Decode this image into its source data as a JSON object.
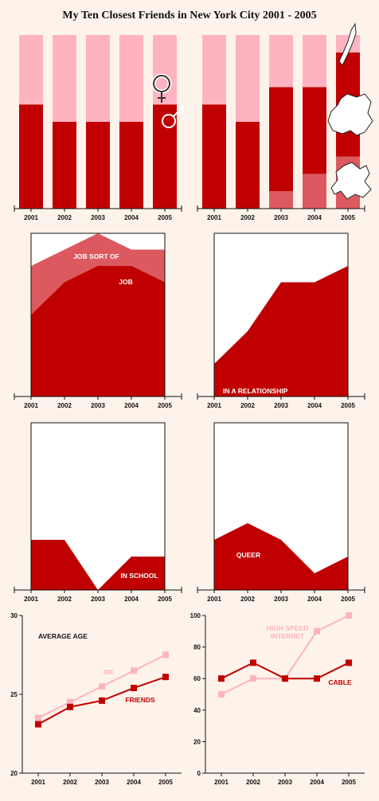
{
  "title": "My Ten Closest Friends in New York City 2001 - 2005",
  "colors": {
    "dark": "#c00000",
    "mid": "#dc5a5f",
    "light": "#ffb3c1",
    "background": "#fdf3ea"
  },
  "chart_data": [
    {
      "id": "gender",
      "type": "bar",
      "stacked": true,
      "categories": [
        "2001",
        "2002",
        "2003",
        "2004",
        "2005"
      ],
      "ylim": [
        0,
        10
      ],
      "series": [
        {
          "name": "male",
          "icon": "male-symbol-icon",
          "color": "dark",
          "values": [
            6,
            5,
            5,
            5,
            6
          ]
        },
        {
          "name": "female",
          "icon": "female-symbol-icon",
          "color": "light",
          "values": [
            4,
            5,
            5,
            5,
            4
          ]
        }
      ]
    },
    {
      "id": "borough",
      "type": "bar",
      "stacked": true,
      "categories": [
        "2001",
        "2002",
        "2003",
        "2004",
        "2005"
      ],
      "ylim": [
        0,
        10
      ],
      "series": [
        {
          "name": "Queens",
          "icon": "queens-map-icon",
          "color": "mid",
          "values": [
            0,
            0,
            1,
            2,
            3
          ]
        },
        {
          "name": "Brooklyn",
          "icon": "brooklyn-map-icon",
          "color": "dark",
          "values": [
            6,
            5,
            6,
            5,
            6
          ]
        },
        {
          "name": "Manhattan",
          "icon": "manhattan-map-icon",
          "color": "light",
          "values": [
            4,
            5,
            3,
            3,
            1
          ]
        }
      ]
    },
    {
      "id": "job",
      "type": "area",
      "x": [
        "2001",
        "2002",
        "2003",
        "2004",
        "2005"
      ],
      "ylim": [
        0,
        10
      ],
      "series": [
        {
          "name": "JOB",
          "color": "dark",
          "values": [
            5,
            7,
            8,
            8,
            7
          ]
        },
        {
          "name": "JOB SORT OF",
          "color": "mid",
          "values": [
            8,
            9,
            10,
            9,
            9
          ]
        }
      ],
      "labels": {
        "job": "JOB",
        "job_sort_of": "JOB SORT OF"
      }
    },
    {
      "id": "relationship",
      "type": "area",
      "x": [
        "2001",
        "2002",
        "2003",
        "2004",
        "2005"
      ],
      "ylim": [
        0,
        10
      ],
      "series": [
        {
          "name": "IN A RELATIONSHIP",
          "color": "dark",
          "values": [
            2,
            4,
            7,
            7,
            8
          ]
        }
      ],
      "labels": {
        "main": "IN A RELATIONSHIP"
      }
    },
    {
      "id": "school",
      "type": "area",
      "x": [
        "2001",
        "2002",
        "2003",
        "2004",
        "2005"
      ],
      "ylim": [
        0,
        10
      ],
      "series": [
        {
          "name": "IN SCHOOL",
          "color": "dark",
          "values": [
            3,
            3,
            0,
            2,
            2
          ]
        }
      ],
      "labels": {
        "main": "IN SCHOOL"
      }
    },
    {
      "id": "queer",
      "type": "area",
      "x": [
        "2001",
        "2002",
        "2003",
        "2004",
        "2005"
      ],
      "ylim": [
        0,
        10
      ],
      "series": [
        {
          "name": "QUEER",
          "color": "dark",
          "values": [
            3,
            4,
            3,
            1,
            2
          ]
        }
      ],
      "labels": {
        "main": "QUEER"
      }
    },
    {
      "id": "age",
      "type": "line",
      "x": [
        "2001",
        "2002",
        "2003",
        "2004",
        "2005"
      ],
      "ylim": [
        20,
        30
      ],
      "yticks": [
        "20",
        "25",
        "30"
      ],
      "series": [
        {
          "name": "ME",
          "color": "light",
          "values": [
            23.5,
            24.5,
            25.5,
            26.5,
            27.5
          ]
        },
        {
          "name": "FRIENDS",
          "color": "dark",
          "values": [
            23.1,
            24.2,
            24.6,
            25.4,
            26.1
          ]
        }
      ],
      "labels": {
        "title": "AVERAGE AGE",
        "me": "ME",
        "friends": "FRIENDS"
      }
    },
    {
      "id": "internet",
      "type": "line",
      "x": [
        "2001",
        "2002",
        "2003",
        "2004",
        "2005"
      ],
      "ylim": [
        0,
        100
      ],
      "yticks": [
        "0",
        "20",
        "40",
        "60",
        "80",
        "100"
      ],
      "series": [
        {
          "name": "HIGH SPEED INTERNET",
          "color": "light",
          "values": [
            50,
            60,
            60,
            90,
            100
          ]
        },
        {
          "name": "CABLE",
          "color": "dark",
          "values": [
            60,
            70,
            60,
            60,
            70
          ]
        }
      ],
      "labels": {
        "hsi_line1": "HIGH SPEED",
        "hsi_line2": "INTERNET",
        "cable": "CABLE"
      }
    }
  ]
}
